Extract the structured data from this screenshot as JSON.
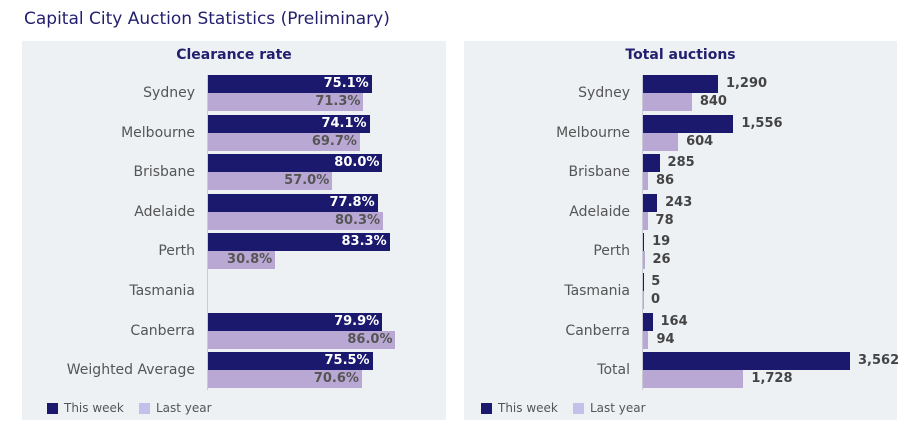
{
  "title": "Capital City Auction Statistics (Preliminary)",
  "colors": {
    "this_week": "#1b196e",
    "last_year": "#b9a8d4",
    "legend_last_year": "#c4c0ec"
  },
  "legend": {
    "this_week": "This week",
    "last_year": "Last year"
  },
  "chart_data": [
    {
      "type": "bar",
      "title": "Clearance rate",
      "categories": [
        "Sydney",
        "Melbourne",
        "Brisbane",
        "Adelaide",
        "Perth",
        "Tasmania",
        "Canberra",
        "Weighted Average"
      ],
      "series": [
        {
          "name": "This week",
          "values": [
            75.1,
            74.1,
            80.0,
            77.8,
            83.3,
            null,
            79.9,
            75.5
          ],
          "labels": [
            "75.1%",
            "74.1%",
            "80.0%",
            "77.8%",
            "83.3%",
            "",
            "79.9%",
            "75.5%"
          ]
        },
        {
          "name": "Last year",
          "values": [
            71.3,
            69.7,
            57.0,
            80.3,
            30.8,
            null,
            86.0,
            70.6
          ],
          "labels": [
            "71.3%",
            "69.7%",
            "57.0%",
            "80.3%",
            "30.8%",
            "",
            "86.0%",
            "70.6%"
          ]
        }
      ],
      "xlim": [
        0,
        100
      ],
      "legend": "bottom-left"
    },
    {
      "type": "bar",
      "title": "Total auctions",
      "categories": [
        "Sydney",
        "Melbourne",
        "Brisbane",
        "Adelaide",
        "Perth",
        "Tasmania",
        "Canberra",
        "Total"
      ],
      "series": [
        {
          "name": "This week",
          "values": [
            1290,
            1556,
            285,
            243,
            19,
            5,
            164,
            3562
          ],
          "labels": [
            "1,290",
            "1,556",
            "285",
            "243",
            "19",
            "5",
            "164",
            "3,562"
          ]
        },
        {
          "name": "Last year",
          "values": [
            840,
            604,
            86,
            78,
            26,
            0,
            94,
            1728
          ],
          "labels": [
            "840",
            "604",
            "86",
            "78",
            "26",
            "0",
            "94",
            "1,728"
          ]
        }
      ],
      "xlim": [
        0,
        3562
      ],
      "legend": "bottom-left"
    }
  ]
}
